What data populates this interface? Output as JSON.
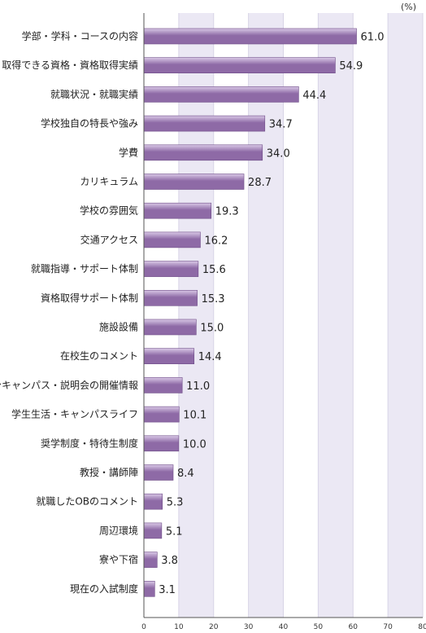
{
  "chart_data": {
    "type": "bar",
    "orientation": "horizontal",
    "unit": "(%)",
    "xlim": [
      0,
      80
    ],
    "ticks": [
      0,
      10,
      20,
      30,
      40,
      50,
      60,
      70,
      80
    ],
    "categories": [
      "学部・学科・コースの内容",
      "取得できる資格・資格取得実績",
      "就職状況・就職実績",
      "学校独自の特長や強み",
      "学費",
      "カリキュラム",
      "学校の雰囲気",
      "交通アクセス",
      "就職指導・サポート体制",
      "資格取得サポート体制",
      "施設設備",
      "在校生のコメント",
      "オープンキャンパス・説明会の開催情報",
      "学生生活・キャンパスライフ",
      "奨学制度・特待生制度",
      "教授・講師陣",
      "就職したOBのコメント",
      "周辺環境",
      "寮や下宿",
      "現在の入試制度"
    ],
    "values": [
      61.0,
      54.9,
      44.4,
      34.7,
      34.0,
      28.7,
      19.3,
      16.2,
      15.6,
      15.3,
      15.0,
      14.4,
      11.0,
      10.1,
      10.0,
      8.4,
      5.3,
      5.1,
      3.8,
      3.1
    ],
    "value_labels": [
      "61.0",
      "54.9",
      "44.4",
      "34.7",
      "34.0",
      "28.7",
      "19.3",
      "16.2",
      "15.6",
      "15.3",
      "15.0",
      "14.4",
      "11.0",
      "10.1",
      "10.0",
      "8.4",
      "5.3",
      "5.1",
      "3.8",
      "3.1"
    ],
    "bar_color": "#8e6aa6",
    "bar_highlight": "#d9c8e6",
    "band_color": "#ebe8f4"
  }
}
